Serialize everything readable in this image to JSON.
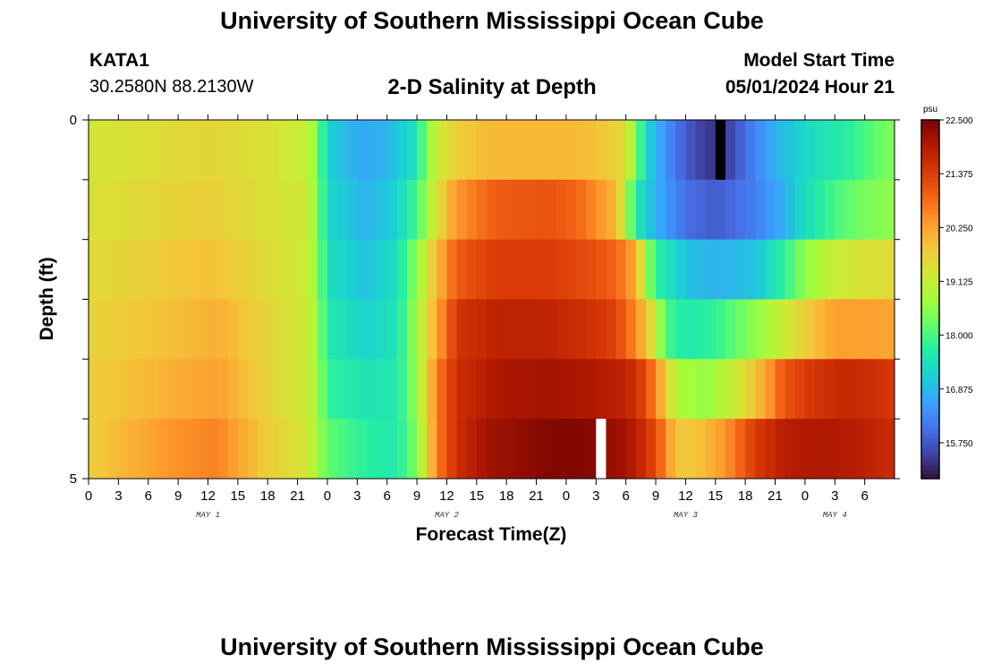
{
  "header": {
    "title": "University of Southern Mississippi Ocean Cube",
    "station": "KATA1",
    "coords": "30.2580N  88.2130W",
    "subtitle": "2-D Salinity at Depth",
    "model_label": "Model Start Time",
    "model_time": "05/01/2024 Hour 21"
  },
  "footer": {
    "title": "University of Southern Mississippi Ocean Cube"
  },
  "colors": {
    "scale": [
      "#30123b",
      "#4145ab",
      "#4675ed",
      "#39a2fc",
      "#1bcfd4",
      "#24eca6",
      "#61fc6c",
      "#a4fc3b",
      "#d1e834",
      "#f3c63a",
      "#fe9b2d",
      "#f36315",
      "#d93806",
      "#b11901",
      "#7a0402"
    ],
    "missing_dark": "#000000",
    "missing_light": "#ffffff"
  },
  "chart_data": {
    "type": "heatmap",
    "title": "2-D Salinity at Depth",
    "xlabel": "Forecast Time(Z)",
    "ylabel": "Depth (ft)",
    "x_hours_from_start": [
      0,
      81
    ],
    "x_tick_labels": [
      "0",
      "3",
      "6",
      "9",
      "12",
      "15",
      "18",
      "21",
      "0",
      "3",
      "6",
      "9",
      "12",
      "15",
      "18",
      "21",
      "0",
      "3",
      "6",
      "9",
      "12",
      "15",
      "18",
      "21",
      "0",
      "3",
      "6"
    ],
    "day_labels": [
      {
        "label": "MAY 1",
        "hour": 12
      },
      {
        "label": "MAY 2",
        "hour": 36
      },
      {
        "label": "MAY 3",
        "hour": 60
      },
      {
        "label": "MAY 4",
        "hour": 75
      }
    ],
    "y_tick_labels": [
      "0",
      "5"
    ],
    "y_range_ft": [
      0,
      5
    ],
    "colorbar": {
      "unit": "psu",
      "min": 15.0,
      "max": 22.5,
      "tick_labels": [
        "22.500",
        "21.375",
        "20.250",
        "19.125",
        "18.000",
        "16.875",
        "15.750"
      ],
      "tick_values": [
        22.5,
        21.375,
        20.25,
        19.125,
        18.0,
        16.875,
        15.75
      ]
    },
    "missing": [
      {
        "layer": 0,
        "hour": 63,
        "style": "dark"
      },
      {
        "layer": 5,
        "hour": 51,
        "style": "light"
      }
    ],
    "layers": [
      {
        "depth_ft": 0.0,
        "keys": [
          [
            0,
            19.3
          ],
          [
            12,
            19.6
          ],
          [
            18,
            19.4
          ],
          [
            22,
            19.1
          ],
          [
            23,
            18.4
          ],
          [
            24,
            17.2
          ],
          [
            27,
            16.7
          ],
          [
            30,
            16.8
          ],
          [
            33,
            17.5
          ],
          [
            34,
            18.5
          ],
          [
            35,
            19.2
          ],
          [
            37,
            19.7
          ],
          [
            40,
            20.0
          ],
          [
            44,
            20.0
          ],
          [
            48,
            20.0
          ],
          [
            51,
            19.9
          ],
          [
            54,
            19.5
          ],
          [
            55,
            18.5
          ],
          [
            56,
            17.3
          ],
          [
            58,
            16.4
          ],
          [
            60,
            15.8
          ],
          [
            62,
            15.4
          ],
          [
            64,
            15.4
          ],
          [
            66,
            16.0
          ],
          [
            69,
            16.8
          ],
          [
            72,
            17.3
          ],
          [
            75,
            17.6
          ],
          [
            77,
            17.8
          ],
          [
            79,
            18.2
          ],
          [
            81,
            18.5
          ]
        ]
      },
      {
        "depth_ft": 1.0,
        "keys": [
          [
            0,
            19.4
          ],
          [
            12,
            19.7
          ],
          [
            18,
            19.4
          ],
          [
            22,
            19.2
          ],
          [
            23,
            18.5
          ],
          [
            24,
            17.3
          ],
          [
            28,
            16.8
          ],
          [
            31,
            17.2
          ],
          [
            33,
            18.0
          ],
          [
            35,
            19.4
          ],
          [
            37,
            20.4
          ],
          [
            41,
            21.0
          ],
          [
            46,
            21.1
          ],
          [
            49,
            20.9
          ],
          [
            51,
            20.5
          ],
          [
            53,
            20.0
          ],
          [
            54,
            19.0
          ],
          [
            55,
            17.6
          ],
          [
            57,
            16.8
          ],
          [
            60,
            16.0
          ],
          [
            63,
            15.8
          ],
          [
            67,
            16.2
          ],
          [
            70,
            16.8
          ],
          [
            72,
            17.4
          ],
          [
            75,
            18.0
          ],
          [
            78,
            18.4
          ],
          [
            81,
            18.6
          ]
        ]
      },
      {
        "depth_ft": 2.0,
        "keys": [
          [
            0,
            19.5
          ],
          [
            12,
            19.9
          ],
          [
            18,
            19.5
          ],
          [
            22,
            19.2
          ],
          [
            23,
            18.6
          ],
          [
            24,
            17.4
          ],
          [
            28,
            17.0
          ],
          [
            31,
            17.4
          ],
          [
            33,
            18.6
          ],
          [
            35,
            20.0
          ],
          [
            37,
            21.0
          ],
          [
            41,
            21.4
          ],
          [
            46,
            21.4
          ],
          [
            50,
            21.2
          ],
          [
            53,
            20.9
          ],
          [
            55,
            20.2
          ],
          [
            56,
            18.8
          ],
          [
            57,
            17.8
          ],
          [
            60,
            17.0
          ],
          [
            63,
            16.8
          ],
          [
            67,
            17.0
          ],
          [
            70,
            17.8
          ],
          [
            72,
            18.6
          ],
          [
            75,
            19.2
          ],
          [
            78,
            19.4
          ],
          [
            81,
            19.5
          ]
        ]
      },
      {
        "depth_ft": 3.0,
        "keys": [
          [
            0,
            19.6
          ],
          [
            8,
            19.9
          ],
          [
            13,
            20.1
          ],
          [
            18,
            19.6
          ],
          [
            22,
            19.2
          ],
          [
            23,
            18.7
          ],
          [
            24,
            17.6
          ],
          [
            28,
            17.2
          ],
          [
            31,
            17.5
          ],
          [
            33,
            18.8
          ],
          [
            35,
            20.2
          ],
          [
            37,
            21.5
          ],
          [
            41,
            21.8
          ],
          [
            46,
            21.8
          ],
          [
            50,
            21.6
          ],
          [
            53,
            21.3
          ],
          [
            55,
            20.5
          ],
          [
            57,
            19.2
          ],
          [
            58,
            18.0
          ],
          [
            60,
            17.6
          ],
          [
            63,
            17.8
          ],
          [
            66,
            18.4
          ],
          [
            69,
            19.0
          ],
          [
            72,
            19.7
          ],
          [
            75,
            20.3
          ],
          [
            78,
            20.3
          ],
          [
            81,
            20.2
          ]
        ]
      },
      {
        "depth_ft": 4.0,
        "keys": [
          [
            0,
            19.7
          ],
          [
            8,
            20.1
          ],
          [
            13,
            20.3
          ],
          [
            18,
            19.6
          ],
          [
            22,
            19.2
          ],
          [
            23,
            18.8
          ],
          [
            24,
            17.8
          ],
          [
            28,
            17.5
          ],
          [
            31,
            17.6
          ],
          [
            33,
            18.7
          ],
          [
            35,
            20.6
          ],
          [
            37,
            21.6
          ],
          [
            41,
            22.0
          ],
          [
            46,
            22.1
          ],
          [
            50,
            22.0
          ],
          [
            54,
            21.8
          ],
          [
            56,
            21.2
          ],
          [
            58,
            19.8
          ],
          [
            59,
            18.9
          ],
          [
            62,
            18.6
          ],
          [
            65,
            19.2
          ],
          [
            68,
            20.2
          ],
          [
            70,
            21.1
          ],
          [
            73,
            21.5
          ],
          [
            76,
            21.7
          ],
          [
            79,
            21.6
          ],
          [
            81,
            21.4
          ]
        ]
      },
      {
        "depth_ft": 5.0,
        "keys": [
          [
            0,
            19.7
          ],
          [
            8,
            20.4
          ],
          [
            13,
            20.6
          ],
          [
            18,
            19.7
          ],
          [
            22,
            19.3
          ],
          [
            23,
            18.8
          ],
          [
            24,
            18.2
          ],
          [
            28,
            17.7
          ],
          [
            31,
            17.6
          ],
          [
            33,
            18.5
          ],
          [
            35,
            20.6
          ],
          [
            37,
            21.6
          ],
          [
            40,
            22.1
          ],
          [
            46,
            22.4
          ],
          [
            50,
            22.4
          ],
          [
            54,
            22.1
          ],
          [
            56,
            21.6
          ],
          [
            58,
            20.6
          ],
          [
            59,
            19.8
          ],
          [
            61,
            19.8
          ],
          [
            64,
            20.4
          ],
          [
            67,
            21.4
          ],
          [
            70,
            21.9
          ],
          [
            74,
            22.0
          ],
          [
            77,
            21.9
          ],
          [
            80,
            21.7
          ],
          [
            81,
            21.6
          ]
        ]
      }
    ]
  }
}
